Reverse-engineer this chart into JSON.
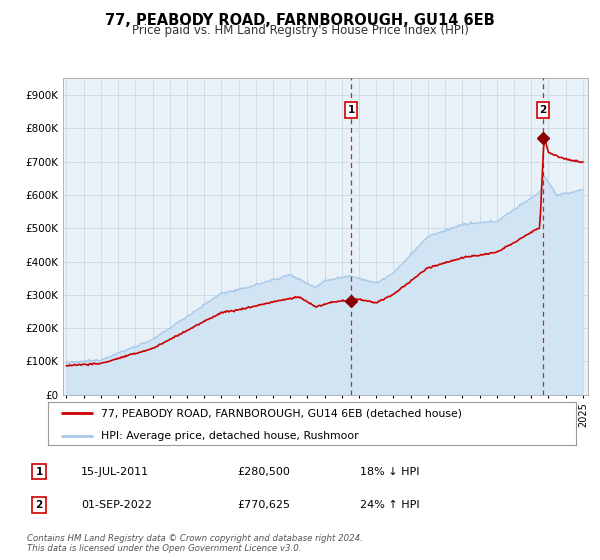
{
  "title": "77, PEABODY ROAD, FARNBOROUGH, GU14 6EB",
  "subtitle": "Price paid vs. HM Land Registry's House Price Index (HPI)",
  "legend_line1": "77, PEABODY ROAD, FARNBOROUGH, GU14 6EB (detached house)",
  "legend_line2": "HPI: Average price, detached house, Rushmoor",
  "annotation1_date": "15-JUL-2011",
  "annotation1_price": "£280,500",
  "annotation1_hpi": "18% ↓ HPI",
  "annotation2_date": "01-SEP-2022",
  "annotation2_price": "£770,625",
  "annotation2_hpi": "24% ↑ HPI",
  "footer": "Contains HM Land Registry data © Crown copyright and database right 2024.\nThis data is licensed under the Open Government Licence v3.0.",
  "hpi_color": "#a8c8e8",
  "hpi_fill_color": "#d0e4f4",
  "price_color": "#cc0000",
  "marker_color": "#8b0000",
  "dashed_line_color": "#cc0000",
  "plot_bg_color": "#e8f0f8",
  "grid_color": "#c8d8e8",
  "annotation_box_color": "#cc0000",
  "ylim": [
    0,
    950000
  ],
  "yticks": [
    0,
    100000,
    200000,
    300000,
    400000,
    500000,
    600000,
    700000,
    800000,
    900000
  ],
  "ytick_labels": [
    "£0",
    "£100K",
    "£200K",
    "£300K",
    "£400K",
    "£500K",
    "£600K",
    "£700K",
    "£800K",
    "£900K"
  ],
  "sale1_year": 2011.54,
  "sale1_value": 280500,
  "sale2_year": 2022.67,
  "sale2_value": 770625
}
